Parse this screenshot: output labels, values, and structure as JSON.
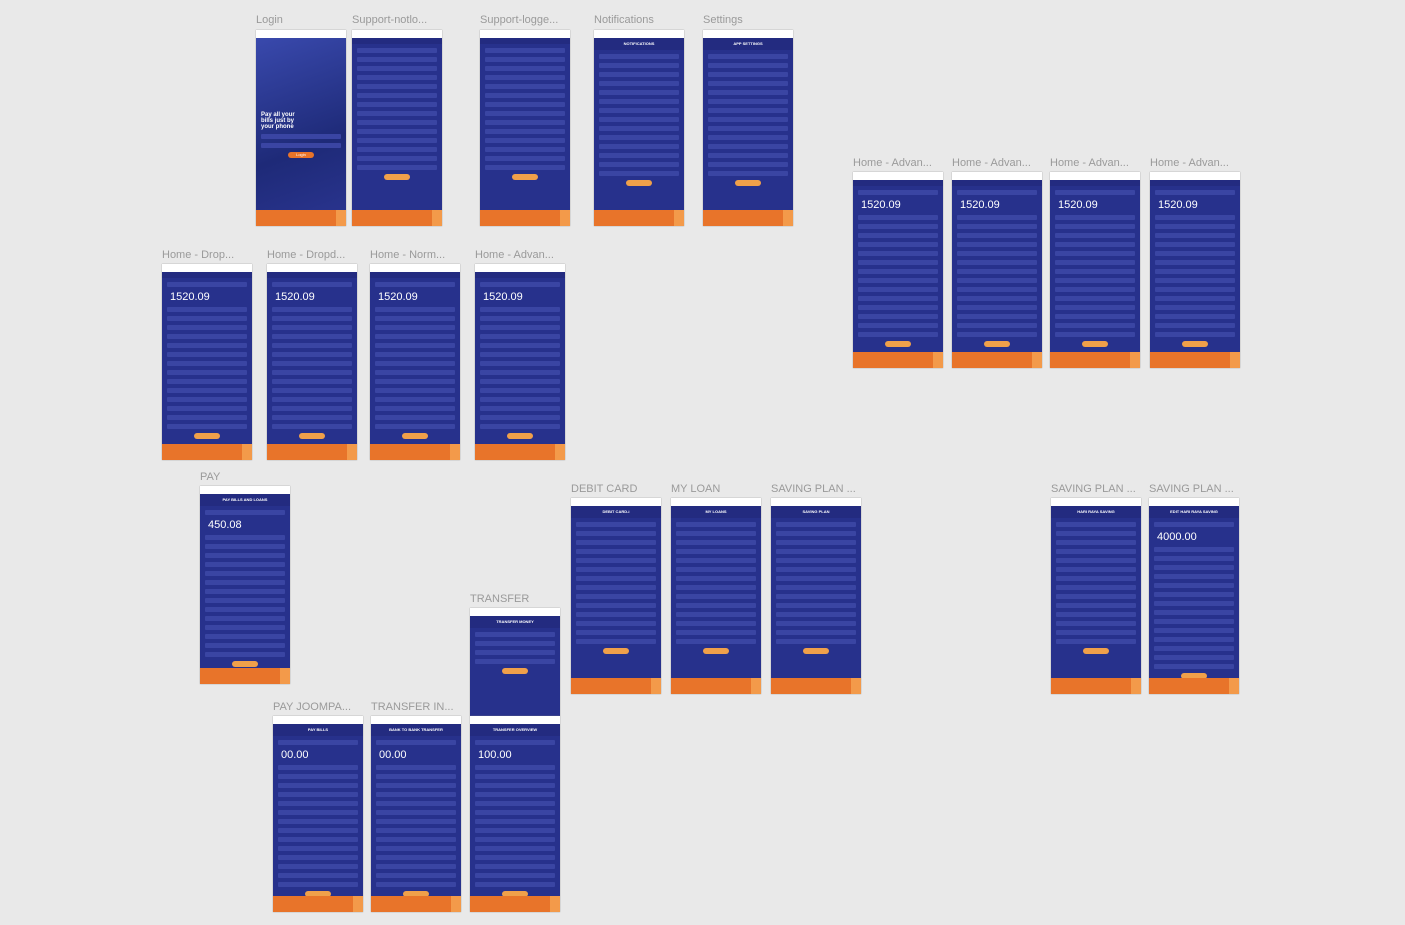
{
  "frames": [
    {
      "label": "Login",
      "headline": "Pay all your bills just by your phone",
      "button": "Login"
    },
    {
      "label": "Support-notlo..."
    },
    {
      "label": "Support-logge..."
    },
    {
      "label": "Notifications",
      "title": "NOTIFICATIONS"
    },
    {
      "label": "Settings",
      "title": "APP SETTINGS"
    },
    {
      "label": "Home - Advan...",
      "amount": "1520.09"
    },
    {
      "label": "Home - Advan...",
      "amount": "1520.09"
    },
    {
      "label": "Home - Advan...",
      "amount": "1520.09"
    },
    {
      "label": "Home - Advan...",
      "amount": "1520.09"
    },
    {
      "label": "Home -  Drop...",
      "amount": "1520.09"
    },
    {
      "label": "Home - Dropd...",
      "amount": "1520.09"
    },
    {
      "label": "Home - Norm...",
      "amount": "1520.09"
    },
    {
      "label": "Home - Advan...",
      "amount": "1520.09"
    },
    {
      "label": "PAY",
      "title": "PAY BILLS AND LOANS",
      "amount": "450.08"
    },
    {
      "label": "DEBIT CARD",
      "title": "DEBIT CARD-i"
    },
    {
      "label": "MY LOAN",
      "title": "MY LOANS"
    },
    {
      "label": "SAVING PLAN ...",
      "title": "SAVING PLAN"
    },
    {
      "label": "SAVING PLAN ...",
      "title": "HARI RAYA SAVING"
    },
    {
      "label": "SAVING PLAN ...",
      "title": "EDIT HARI RAYA SAVING",
      "amount": "4000.00"
    },
    {
      "label": "TRANSFER",
      "title": "TRANSFER MONEY"
    },
    {
      "label": "PAY JOOMPA...",
      "title": "PAY BILLS",
      "amount": "00.00"
    },
    {
      "label": "TRANSFER IN...",
      "title": "BANK TO BANK TRANSFER",
      "amount": "00.00"
    },
    {
      "title": "TRANSFER OVERVIEW",
      "amount": "100.00"
    }
  ]
}
